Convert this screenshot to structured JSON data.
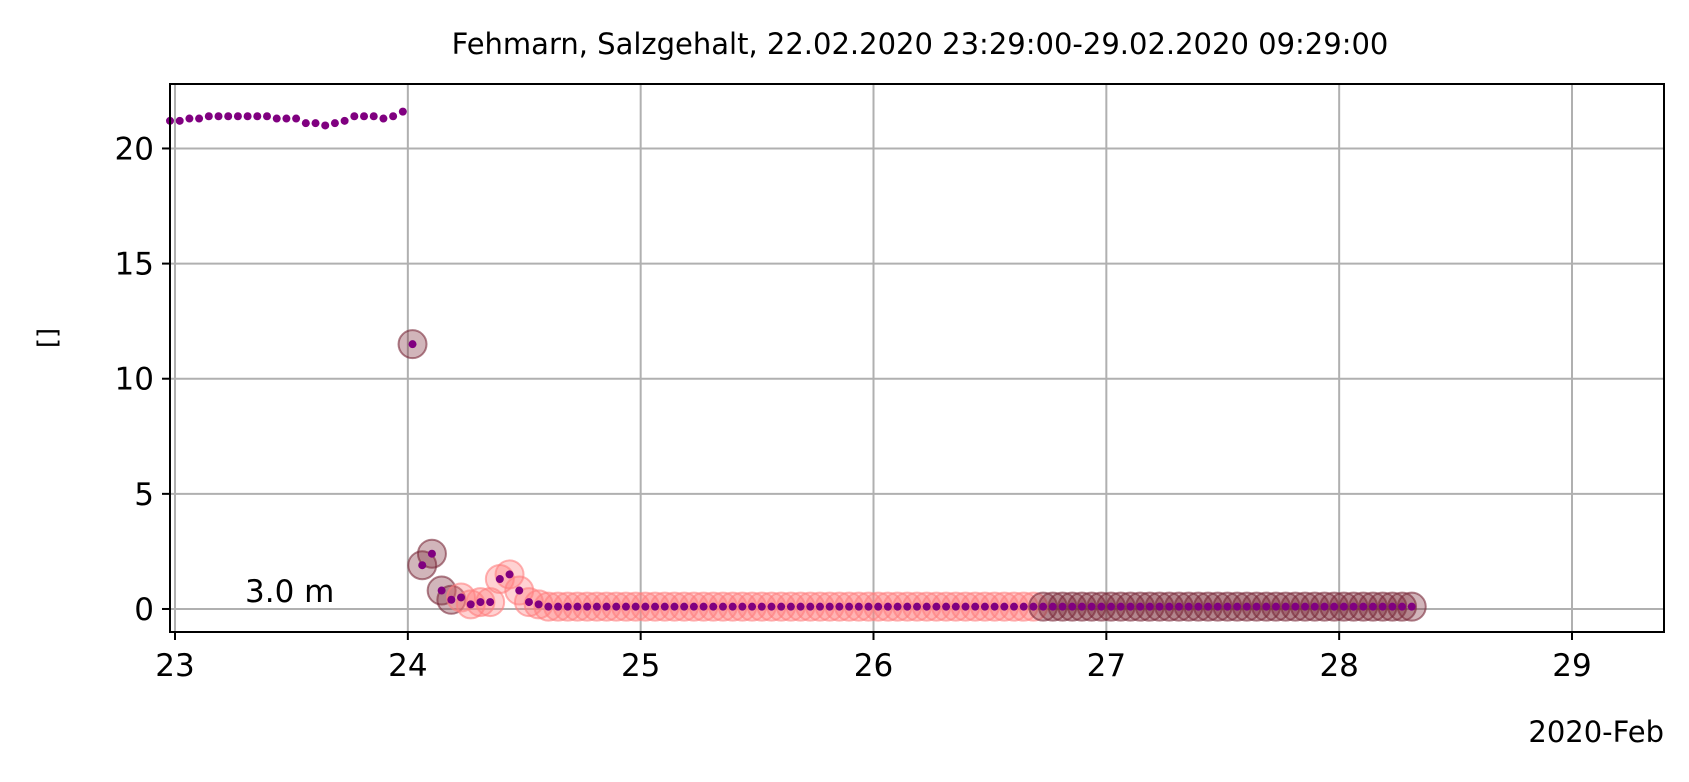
{
  "chart_data": {
    "type": "scatter",
    "title": "Fehmarn, Salzgehalt, 22.02.2020 23:29:00-29.02.2020 09:29:00",
    "ylabel": "[]",
    "xlabel": "",
    "x_offset_label": "2020-Feb",
    "annotation": "3.0 m",
    "ylim": [
      -1,
      22.8
    ],
    "xlim": [
      "2020-02-22T23:29",
      "2020-02-29T09:29"
    ],
    "x_ticks": [
      {
        "label": "23",
        "date": "2020-02-23T00:00"
      },
      {
        "label": "24",
        "date": "2020-02-24T00:00"
      },
      {
        "label": "25",
        "date": "2020-02-25T00:00"
      },
      {
        "label": "26",
        "date": "2020-02-26T00:00"
      },
      {
        "label": "27",
        "date": "2020-02-27T00:00"
      },
      {
        "label": "28",
        "date": "2020-02-28T00:00"
      },
      {
        "label": "29",
        "date": "2020-02-29T00:00"
      }
    ],
    "y_ticks": [
      0,
      5,
      10,
      15,
      20
    ],
    "grid": true,
    "colors": {
      "points": "#800080",
      "flag_good": "#ff7f7f",
      "flag_bad": "#7a2a3a",
      "grid": "#b0b0b0"
    },
    "series": [
      {
        "x": [
          "2020-02-22T23:29",
          "2020-02-23T00:29",
          "2020-02-23T01:29",
          "2020-02-23T02:29",
          "2020-02-23T03:29",
          "2020-02-23T04:29",
          "2020-02-23T05:29",
          "2020-02-23T06:29",
          "2020-02-23T07:29",
          "2020-02-23T08:29",
          "2020-02-23T09:29",
          "2020-02-23T10:29",
          "2020-02-23T11:29",
          "2020-02-23T12:29",
          "2020-02-23T13:29",
          "2020-02-23T14:29",
          "2020-02-23T15:29",
          "2020-02-23T16:29",
          "2020-02-23T17:29",
          "2020-02-23T18:29",
          "2020-02-23T19:29",
          "2020-02-23T20:29",
          "2020-02-23T21:29",
          "2020-02-23T22:29",
          "2020-02-23T23:29"
        ],
        "y": [
          21.2,
          21.2,
          21.3,
          21.3,
          21.4,
          21.4,
          21.4,
          21.4,
          21.4,
          21.4,
          21.4,
          21.3,
          21.3,
          21.3,
          21.1,
          21.1,
          21.0,
          21.1,
          21.2,
          21.4,
          21.4,
          21.4,
          21.3,
          21.4,
          21.6
        ]
      },
      {
        "x": [
          "2020-02-24T00:29",
          "2020-02-24T01:29",
          "2020-02-24T02:29",
          "2020-02-24T03:29",
          "2020-02-24T04:29",
          "2020-02-24T05:29",
          "2020-02-24T06:29",
          "2020-02-24T07:29",
          "2020-02-24T08:29",
          "2020-02-24T09:29",
          "2020-02-24T10:29",
          "2020-02-24T11:29",
          "2020-02-24T12:29",
          "2020-02-24T13:29"
        ],
        "y": [
          11.5,
          1.9,
          2.4,
          0.8,
          0.4,
          0.5,
          0.2,
          0.3,
          0.3,
          1.3,
          1.5,
          0.8,
          0.3,
          0.2
        ]
      }
    ],
    "flat_segment": {
      "start": "2020-02-24T14:29",
      "end": "2020-02-28T07:29",
      "step_hours": 1,
      "value": 0.1,
      "bad_from": "2020-02-26T17:29"
    },
    "bad_points": [
      "2020-02-24T00:29",
      "2020-02-24T01:29",
      "2020-02-24T02:29",
      "2020-02-24T03:29",
      "2020-02-24T04:29"
    ]
  }
}
